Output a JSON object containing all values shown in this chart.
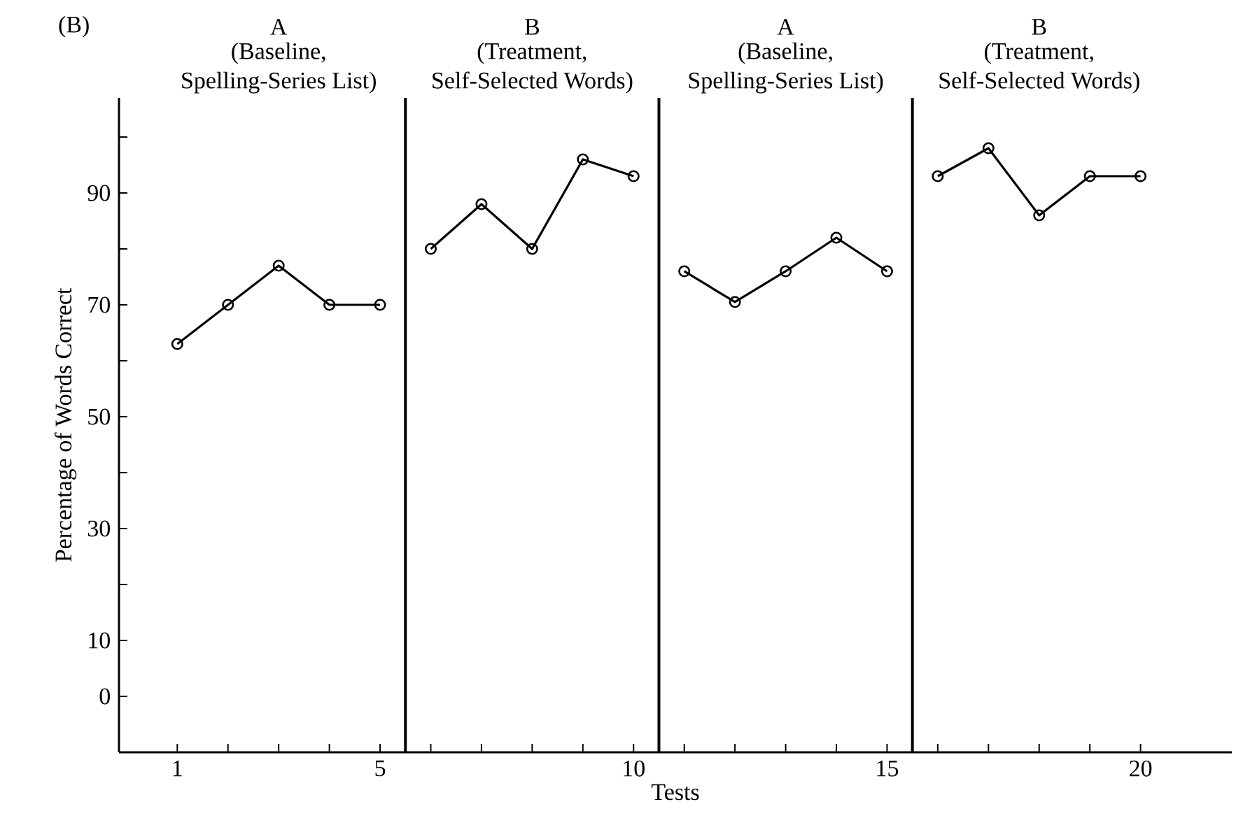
{
  "chart_data": {
    "type": "line",
    "xlabel": "Tests",
    "ylabel": "Percentage of Words Correct",
    "annotations": [
      "(B)",
      "A",
      "(Baseline,",
      "Spelling-Series List)",
      "B",
      "(Treatment,",
      "Self-Selected Words)",
      "A",
      "(Baseline,",
      "Spelling-Series List)",
      "B",
      "(Treatment,",
      "Self-Selected Words)"
    ],
    "series": [
      {
        "color": "#000000",
        "x": [
          1,
          2,
          3,
          4,
          5
        ],
        "values": [
          63,
          70,
          77,
          70,
          70
        ]
      },
      {
        "color": "#000000",
        "x": [
          6,
          7,
          8,
          9,
          10
        ],
        "values": [
          80,
          88,
          80,
          96,
          93
        ]
      },
      {
        "color": "#000000",
        "x": [
          11,
          12,
          13,
          14,
          15
        ],
        "values": [
          76,
          70.5,
          76,
          82,
          76
        ]
      },
      {
        "color": "#000000",
        "x": [
          16,
          17,
          18,
          19,
          20
        ],
        "values": [
          93,
          98,
          86,
          93,
          93
        ]
      }
    ],
    "ref_lines": [
      {
        "axis": "x",
        "value": 5.5,
        "color": "#000000"
      },
      {
        "axis": "x",
        "value": 10.5,
        "color": "#000000"
      },
      {
        "axis": "x",
        "value": 15.5,
        "color": "#000000"
      }
    ],
    "xlim": [
      -0.15,
      21.8
    ],
    "ylim": [
      -10,
      107
    ],
    "xticks": [
      1,
      {
        "value": 2,
        "label": null
      },
      {
        "value": 3,
        "label": null
      },
      {
        "value": 4,
        "label": null
      },
      5,
      {
        "value": 6,
        "label": null
      },
      {
        "value": 7,
        "label": null
      },
      {
        "value": 8,
        "label": null
      },
      {
        "value": 9,
        "label": null
      },
      10,
      {
        "value": 11,
        "label": null
      },
      {
        "value": 12,
        "label": null
      },
      {
        "value": 13,
        "label": null
      },
      {
        "value": 14,
        "label": null
      },
      15,
      {
        "value": 16,
        "label": null
      },
      {
        "value": 17,
        "label": null
      },
      {
        "value": 18,
        "label": null
      },
      {
        "value": 19,
        "label": null
      },
      20
    ],
    "yticks": [
      0,
      10,
      {
        "value": 20,
        "label": null
      },
      30,
      {
        "value": 40,
        "label": null
      },
      50,
      {
        "value": 60,
        "label": null
      },
      70,
      {
        "value": 80,
        "label": null
      },
      90,
      {
        "value": 100,
        "label": null
      }
    ],
    "marker": "circle",
    "line_style": "solid",
    "grid": false
  }
}
